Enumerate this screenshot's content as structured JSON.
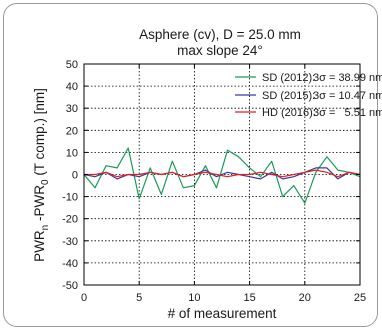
{
  "chart_data": {
    "type": "line",
    "title_line1": "Asphere (cv), D = 25.0 mm",
    "title_line2": "max slope 24°",
    "xlabel": "# of measurement",
    "ylabel_main": "PWR",
    "ylabel_sub1": "n",
    "ylabel_mid": " -PWR",
    "ylabel_sub2": "0",
    "ylabel_tail": " (T comp.) [nm]",
    "xlim": [
      0,
      25
    ],
    "ylim": [
      -50,
      50
    ],
    "grid": true,
    "legend_position": "top-right",
    "x_ticks": [
      0,
      5,
      10,
      15,
      20,
      25
    ],
    "y_ticks": [
      50,
      40,
      30,
      20,
      10,
      0,
      -10,
      -20,
      -30,
      -40,
      -50
    ],
    "x": [
      0,
      1,
      2,
      3,
      4,
      5,
      6,
      7,
      8,
      9,
      10,
      11,
      12,
      13,
      14,
      15,
      16,
      17,
      18,
      19,
      20,
      21,
      22,
      23,
      24,
      25
    ],
    "series": [
      {
        "name": "SD (2012):",
        "sigma_label": "3σ = 38.99 nm",
        "color": "#1a9a5a",
        "values": [
          0,
          -6,
          4,
          3,
          12,
          -11,
          3,
          -9,
          6,
          -6,
          -5,
          4,
          -6,
          11,
          8,
          3,
          -1,
          6,
          -10,
          -5,
          -13,
          1,
          8,
          2,
          1,
          -1
        ]
      },
      {
        "name": "SD (2015):",
        "sigma_label": "3σ = 10.47 nm",
        "color": "#3a3aa0",
        "values": [
          0,
          -1,
          1,
          -2,
          0,
          -1,
          1,
          0,
          1,
          -1,
          0,
          2,
          -1,
          1,
          0,
          -1,
          -2,
          1,
          -2,
          -1,
          1,
          3,
          3,
          -2,
          1,
          0
        ]
      },
      {
        "name": "HD (2016):",
        "sigma_label": "3σ =   5.51 nm",
        "color": "#e02020",
        "values": [
          0,
          0,
          1,
          -1,
          0,
          0,
          1,
          0,
          1,
          -1,
          0,
          1,
          0,
          -1,
          0,
          0,
          1,
          0,
          -1,
          0,
          1,
          2,
          1,
          -1,
          1,
          0
        ]
      }
    ]
  }
}
